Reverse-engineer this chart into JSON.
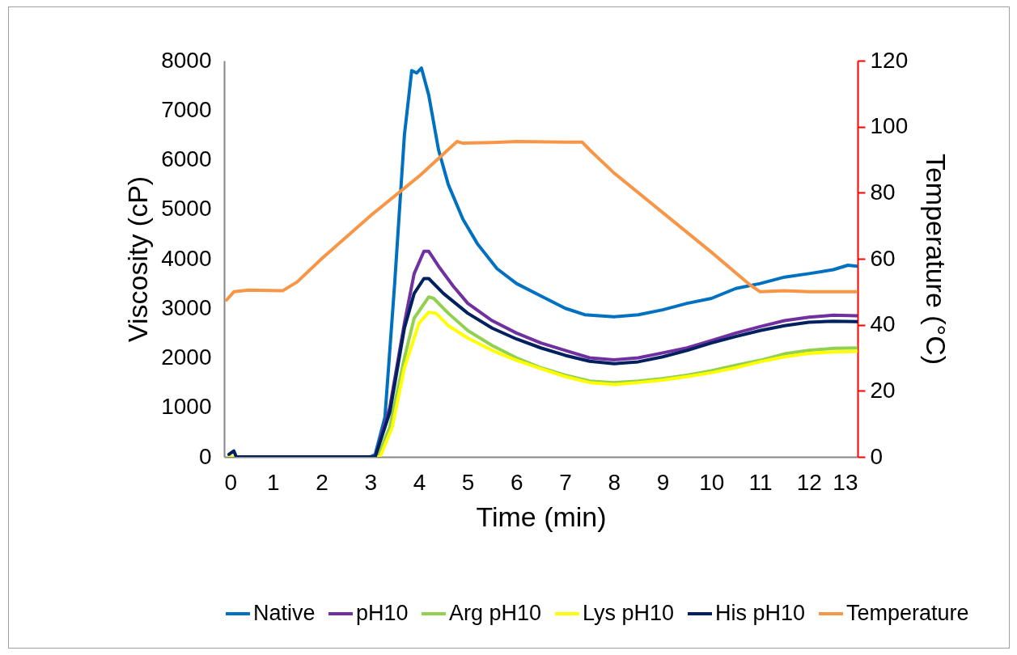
{
  "chart_data": {
    "type": "line",
    "xlabel": "Time (min)",
    "ylabel": "Viscosity (cP)",
    "y2label": "Temperature (°C)",
    "xlim": [
      0,
      13
    ],
    "xticks": [
      0,
      1,
      2,
      3,
      4,
      5,
      6,
      7,
      8,
      9,
      10,
      11,
      12,
      13
    ],
    "ylim": [
      0,
      8000
    ],
    "yticks": [
      0,
      1000,
      2000,
      3000,
      4000,
      5000,
      6000,
      7000,
      8000
    ],
    "y2lim": [
      0,
      120
    ],
    "y2ticks": [
      0,
      20,
      40,
      60,
      80,
      100,
      120
    ],
    "legend": "bottom",
    "series": [
      {
        "name": "Native",
        "color": "#0070c0",
        "x": [
          0.1,
          3.0,
          3.1,
          3.3,
          3.5,
          3.7,
          3.85,
          3.95,
          4.05,
          4.2,
          4.4,
          4.6,
          4.9,
          5.2,
          5.6,
          6.0,
          6.5,
          7.0,
          7.4,
          7.7,
          8.0,
          8.5,
          9.0,
          9.5,
          10,
          10.5,
          11,
          11.5,
          12,
          12.5,
          12.8,
          13
        ],
        "values": [
          0,
          0,
          50,
          800,
          3500,
          6500,
          7800,
          7750,
          7850,
          7300,
          6200,
          5500,
          4800,
          4300,
          3800,
          3500,
          3250,
          3000,
          2870,
          2850,
          2830,
          2870,
          2970,
          3100,
          3200,
          3400,
          3500,
          3630,
          3700,
          3780,
          3870,
          3850
        ]
      },
      {
        "name": "pH10",
        "color": "#7030a0",
        "x": [
          0.1,
          3.1,
          3.4,
          3.7,
          3.9,
          4.1,
          4.2,
          4.4,
          4.7,
          5.0,
          5.5,
          6,
          6.5,
          7,
          7.5,
          8,
          8.5,
          9,
          9.5,
          10,
          10.5,
          11,
          11.5,
          12,
          12.5,
          13
        ],
        "values": [
          0,
          0,
          1000,
          2700,
          3700,
          4150,
          4150,
          3850,
          3450,
          3100,
          2750,
          2500,
          2300,
          2150,
          2000,
          1960,
          2000,
          2100,
          2200,
          2350,
          2500,
          2630,
          2750,
          2820,
          2860,
          2850
        ]
      },
      {
        "name": "Arg pH10",
        "color": "#92d050",
        "x": [
          0.1,
          3.15,
          3.4,
          3.7,
          3.9,
          4.2,
          4.3,
          4.6,
          5,
          5.5,
          6,
          6.5,
          7,
          7.5,
          8,
          8.5,
          9,
          9.5,
          10,
          10.5,
          11,
          11.5,
          12,
          12.5,
          13
        ],
        "values": [
          0,
          0,
          600,
          2000,
          2800,
          3230,
          3200,
          2900,
          2550,
          2250,
          2000,
          1800,
          1650,
          1530,
          1500,
          1530,
          1580,
          1650,
          1740,
          1850,
          1950,
          2080,
          2150,
          2190,
          2200
        ]
      },
      {
        "name": "Lys pH10",
        "color": "#ffff00",
        "x": [
          0.1,
          3.2,
          3.45,
          3.7,
          4.0,
          4.2,
          4.35,
          4.6,
          5,
          5.5,
          6,
          6.5,
          7,
          7.5,
          8,
          8.5,
          9,
          9.5,
          10,
          10.5,
          11,
          11.5,
          12,
          12.5,
          13
        ],
        "values": [
          0,
          0,
          600,
          1800,
          2700,
          2920,
          2900,
          2650,
          2400,
          2150,
          1950,
          1780,
          1620,
          1500,
          1460,
          1500,
          1550,
          1620,
          1700,
          1800,
          1920,
          2020,
          2090,
          2120,
          2130
        ]
      },
      {
        "name": "His pH10",
        "color": "#002060",
        "x": [
          0.1,
          0.2,
          0.25,
          3.1,
          3.4,
          3.7,
          3.9,
          4.1,
          4.2,
          4.5,
          5,
          5.5,
          6,
          6.5,
          7,
          7.5,
          8,
          8.5,
          9,
          9.5,
          10,
          10.5,
          11,
          11.5,
          12,
          12.5,
          13
        ],
        "values": [
          50,
          120,
          0,
          0,
          900,
          2600,
          3300,
          3600,
          3600,
          3300,
          2900,
          2600,
          2380,
          2200,
          2050,
          1930,
          1880,
          1920,
          2020,
          2150,
          2300,
          2430,
          2550,
          2650,
          2720,
          2740,
          2730
        ]
      },
      {
        "name": "Temperature",
        "color": "#f79646",
        "axis": "y2",
        "x": [
          0.05,
          0.2,
          0.5,
          1.2,
          1.5,
          2,
          3,
          4,
          4.78,
          4.9,
          5.5,
          6,
          7,
          7.35,
          7.5,
          8,
          9,
          10,
          10.8,
          11,
          11.5,
          12,
          13
        ],
        "values": [
          47.5,
          50,
          50.5,
          50.3,
          53,
          60,
          73,
          85,
          95.5,
          95,
          95.2,
          95.5,
          95.3,
          95.3,
          93,
          86,
          74,
          62,
          52,
          50,
          50.3,
          50,
          50
        ]
      }
    ]
  }
}
